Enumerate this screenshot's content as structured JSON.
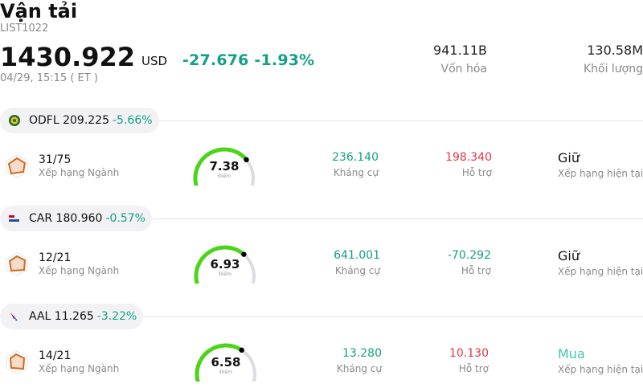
{
  "header": {
    "title": "Vận tải",
    "code": "LIST1022",
    "price": "1430.922",
    "currency": "USD",
    "change": "-27.676 -1.93%",
    "time": "04/29, 15:15  ( ET )",
    "market_cap_value": "941.11B",
    "market_cap_label": "Vốn hóa",
    "volume_value": "130.58M",
    "volume_label": "Khối lượng"
  },
  "stocks": [
    {
      "symbol": "ODFL 209.225",
      "change": "-5.66%",
      "logo_icon": "odfl-logo-icon",
      "rank": "31/75",
      "rank_label": "Xếp hạng Ngành",
      "score": "7.38",
      "score_value": 7.38,
      "score_label": "Điểm",
      "resistance": "236.140",
      "resistance_label": "Kháng cự",
      "support": "198.340",
      "support_label": "Hỗ trợ",
      "rating": "Giữ",
      "rating_label": "Xếp hạng hiện tại"
    },
    {
      "symbol": "CAR 180.960",
      "change": "-0.57%",
      "logo_icon": "avis-budget-logo-icon",
      "rank": "12/21",
      "rank_label": "Xếp hạng Ngành",
      "score": "6.93",
      "score_value": 6.93,
      "score_label": "Điểm",
      "resistance": "641.001",
      "resistance_label": "Kháng cự",
      "support": "-70.292",
      "support_label": "Hỗ trợ",
      "rating": "Giữ",
      "rating_label": "Xếp hạng hiện tại"
    },
    {
      "symbol": "AAL 11.265",
      "change": "-3.22%",
      "logo_icon": "american-airlines-logo-icon",
      "rank": "14/21",
      "rank_label": "Xếp hạng Ngành",
      "score": "6.58",
      "score_value": 6.58,
      "score_label": "Điểm",
      "resistance": "13.280",
      "resistance_label": "Kháng cự",
      "support": "10.130",
      "support_label": "Hỗ trợ",
      "rating": "Mua",
      "rating_label": "Xếp hạng hiện tại"
    }
  ],
  "colors": {
    "up_green": "#13a085",
    "down_red": "#e5364b",
    "gauge_green": "#4cd41a",
    "gauge_track": "#dcdce3",
    "buy_teal": "#3cc8b4"
  }
}
